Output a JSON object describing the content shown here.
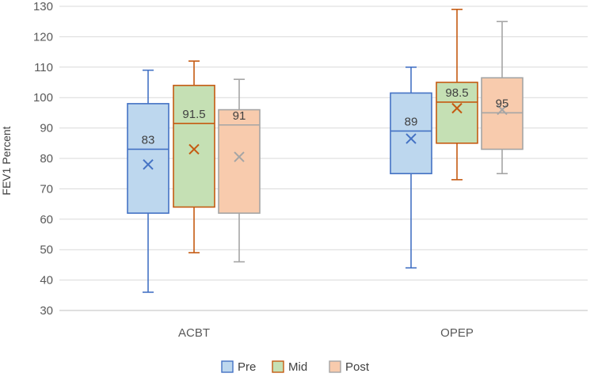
{
  "chart_data": {
    "type": "box",
    "title": "",
    "xlabel": "",
    "ylabel": "FEV1 Percent",
    "ylim": [
      30,
      130
    ],
    "yticks": [
      30,
      40,
      50,
      60,
      70,
      80,
      90,
      100,
      110,
      120,
      130
    ],
    "grid": true,
    "legend_position": "bottom",
    "categories": [
      "ACBT",
      "OPEP"
    ],
    "series": [
      {
        "name": "Pre",
        "fill": "#bdd7ee",
        "stroke": "#4472c4",
        "boxes": [
          {
            "min": 36,
            "q1": 62,
            "median": 83,
            "q3": 98,
            "max": 109,
            "mean": 78,
            "median_label": "83"
          },
          {
            "min": 44,
            "q1": 75,
            "median": 89,
            "q3": 101.5,
            "max": 110,
            "mean": 86.5,
            "median_label": "89"
          }
        ]
      },
      {
        "name": "Mid",
        "fill": "#c5e0b4",
        "stroke": "#c55a11",
        "boxes": [
          {
            "min": 49,
            "q1": 64,
            "median": 91.5,
            "q3": 104,
            "max": 112,
            "mean": 83,
            "median_label": "91.5"
          },
          {
            "min": 73,
            "q1": 85,
            "median": 98.5,
            "q3": 105,
            "max": 129,
            "mean": 96.5,
            "median_label": "98.5"
          }
        ]
      },
      {
        "name": "Post",
        "fill": "#f8cbad",
        "stroke": "#a5a5a5",
        "boxes": [
          {
            "min": 46,
            "q1": 62,
            "median": 91,
            "q3": 96,
            "max": 106,
            "mean": 80.5,
            "median_label": "91"
          },
          {
            "min": 75,
            "q1": 83,
            "median": 95,
            "q3": 106.5,
            "max": 125,
            "mean": 96,
            "median_label": "95"
          }
        ]
      }
    ]
  },
  "colors": {
    "grid": "#d9d9d9",
    "axis": "#bfbfbf",
    "text": "#595959"
  }
}
